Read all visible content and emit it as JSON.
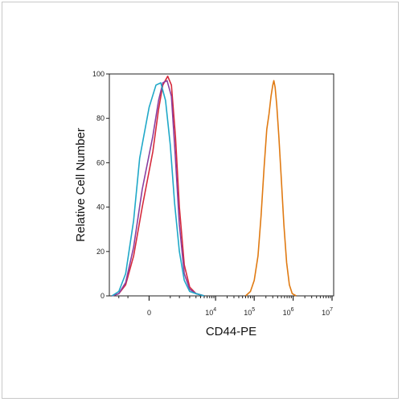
{
  "chart_data": {
    "type": "area",
    "title": "",
    "xlabel": "CD44-PE",
    "ylabel": "Relative Cell Number",
    "xscale": "biexponential",
    "ylim": [
      0,
      100
    ],
    "yticks": [
      0,
      20,
      40,
      60,
      80,
      100
    ],
    "xticks": [
      {
        "value": 0,
        "label": "0"
      },
      {
        "value": 10000,
        "label": "10",
        "exp": "4"
      },
      {
        "value": 100000,
        "label": "10",
        "exp": "5"
      },
      {
        "value": 1000000,
        "label": "10",
        "exp": "6"
      },
      {
        "value": 10000000,
        "label": "10",
        "exp": "7"
      }
    ],
    "legend": "none",
    "grid": false,
    "series": [
      {
        "color": "#d62a3c",
        "values": [
          [
            -1600,
            0
          ],
          [
            -1000,
            1
          ],
          [
            -600,
            5
          ],
          [
            -300,
            18
          ],
          [
            -100,
            40
          ],
          [
            50,
            65
          ],
          [
            150,
            84
          ],
          [
            250,
            95
          ],
          [
            400,
            99
          ],
          [
            550,
            95
          ],
          [
            750,
            72
          ],
          [
            1000,
            40
          ],
          [
            1400,
            14
          ],
          [
            2000,
            4
          ],
          [
            3000,
            1
          ],
          [
            5000,
            0
          ]
        ]
      },
      {
        "color": "#8a3fa0",
        "values": [
          [
            -1600,
            0
          ],
          [
            -1000,
            1
          ],
          [
            -600,
            6
          ],
          [
            -300,
            22
          ],
          [
            -100,
            48
          ],
          [
            50,
            72
          ],
          [
            150,
            88
          ],
          [
            250,
            96
          ],
          [
            380,
            97
          ],
          [
            550,
            90
          ],
          [
            750,
            62
          ],
          [
            1000,
            32
          ],
          [
            1400,
            10
          ],
          [
            2000,
            3
          ],
          [
            3000,
            1
          ],
          [
            5000,
            0
          ]
        ]
      },
      {
        "color": "#1fa8c8",
        "values": [
          [
            -1600,
            0
          ],
          [
            -1000,
            2
          ],
          [
            -600,
            10
          ],
          [
            -300,
            34
          ],
          [
            -150,
            62
          ],
          [
            0,
            85
          ],
          [
            100,
            95
          ],
          [
            200,
            96
          ],
          [
            330,
            88
          ],
          [
            500,
            68
          ],
          [
            700,
            42
          ],
          [
            1000,
            20
          ],
          [
            1400,
            7
          ],
          [
            2000,
            2
          ],
          [
            3000,
            1
          ],
          [
            5000,
            0
          ]
        ]
      },
      {
        "color": "#e07a12",
        "values": [
          [
            60000,
            0
          ],
          [
            80000,
            2
          ],
          [
            100000,
            7
          ],
          [
            125000,
            18
          ],
          [
            150000,
            36
          ],
          [
            180000,
            58
          ],
          [
            210000,
            75
          ],
          [
            240000,
            82
          ],
          [
            270000,
            90
          ],
          [
            300000,
            95
          ],
          [
            320000,
            97
          ],
          [
            345000,
            94
          ],
          [
            380000,
            86
          ],
          [
            430000,
            72
          ],
          [
            500000,
            52
          ],
          [
            580000,
            32
          ],
          [
            680000,
            15
          ],
          [
            800000,
            5
          ],
          [
            950000,
            1
          ],
          [
            1200000,
            0
          ]
        ]
      }
    ]
  }
}
